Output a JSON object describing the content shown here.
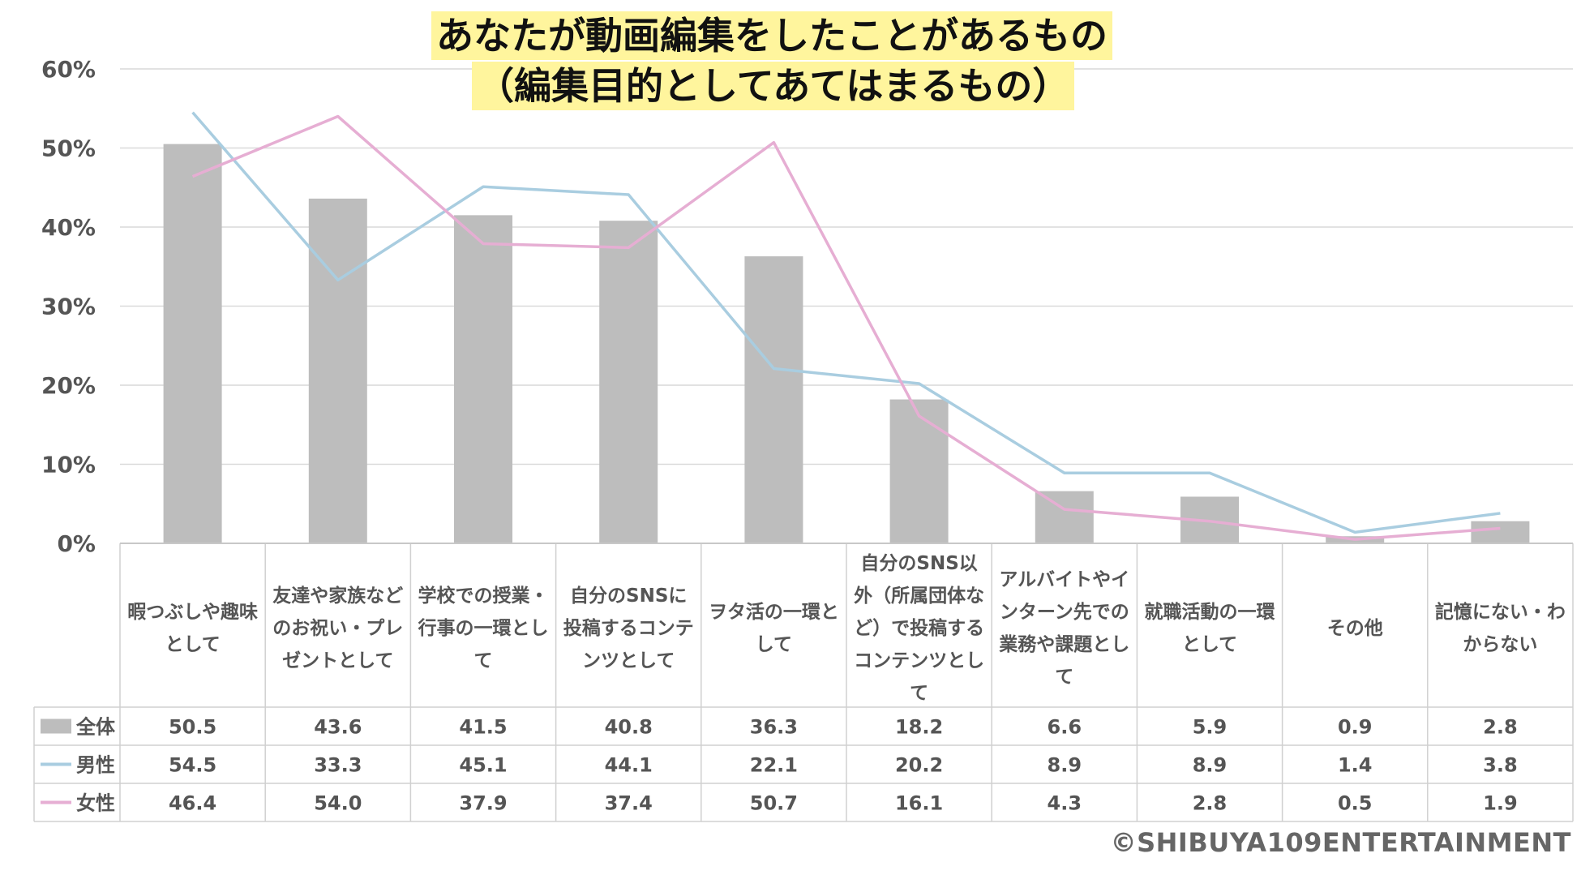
{
  "title": [
    "あなたが動画編集をしたことがあるもの",
    "（編集目的としてあてはまるもの）"
  ],
  "copyright": "©SHIBUYA109ENTERTAINMENT",
  "colors": {
    "bar": "#bdbdbd",
    "male": "#a9cde0",
    "female": "#e6aed3",
    "grid": "#d9d9d9",
    "text": "#555555",
    "border": "#d0d0d0"
  },
  "chart_data": {
    "type": "bar",
    "ylim": [
      0,
      60
    ],
    "yticks": [
      "0%",
      "10%",
      "20%",
      "30%",
      "40%",
      "50%",
      "60%"
    ],
    "grid": true,
    "categories": [
      [
        "暇つぶしや趣味",
        "として"
      ],
      [
        "友達や家族など",
        "のお祝い・プレ",
        "ゼントとして"
      ],
      [
        "学校での授業・",
        "行事の一環とし",
        "て"
      ],
      [
        "自分のSNSに",
        "投稿するコンテ",
        "ンツとして"
      ],
      [
        "ヲタ活の一環と",
        "して"
      ],
      [
        "自分のSNS以",
        "外（所属団体な",
        "ど）で投稿する",
        "コンテンツとし",
        "て"
      ],
      [
        "アルバイトやイ",
        "ンターン先での",
        "業務や課題とし",
        "て"
      ],
      [
        "就職活動の一環",
        "として"
      ],
      [
        "その他"
      ],
      [
        "記憶にない・わ",
        "からない"
      ]
    ],
    "series": [
      {
        "name": "全体",
        "type": "bar",
        "values": [
          50.5,
          43.6,
          41.5,
          40.8,
          36.3,
          18.2,
          6.6,
          5.9,
          0.9,
          2.8
        ],
        "labels": [
          "50.5",
          "43.6",
          "41.5",
          "40.8",
          "36.3",
          "18.2",
          "6.6",
          "5.9",
          "0.9",
          "2.8"
        ]
      },
      {
        "name": "男性",
        "type": "line",
        "values": [
          54.5,
          33.3,
          45.1,
          44.1,
          22.1,
          20.2,
          8.9,
          8.9,
          1.4,
          3.8
        ],
        "labels": [
          "54.5",
          "33.3",
          "45.1",
          "44.1",
          "22.1",
          "20.2",
          "8.9",
          "8.9",
          "1.4",
          "3.8"
        ]
      },
      {
        "name": "女性",
        "type": "line",
        "values": [
          46.4,
          54.0,
          37.9,
          37.4,
          50.7,
          16.1,
          4.3,
          2.8,
          0.5,
          1.9
        ],
        "labels": [
          "46.4",
          "54.0",
          "37.9",
          "37.4",
          "50.7",
          "16.1",
          "4.3",
          "2.8",
          "0.5",
          "1.9"
        ]
      }
    ]
  }
}
